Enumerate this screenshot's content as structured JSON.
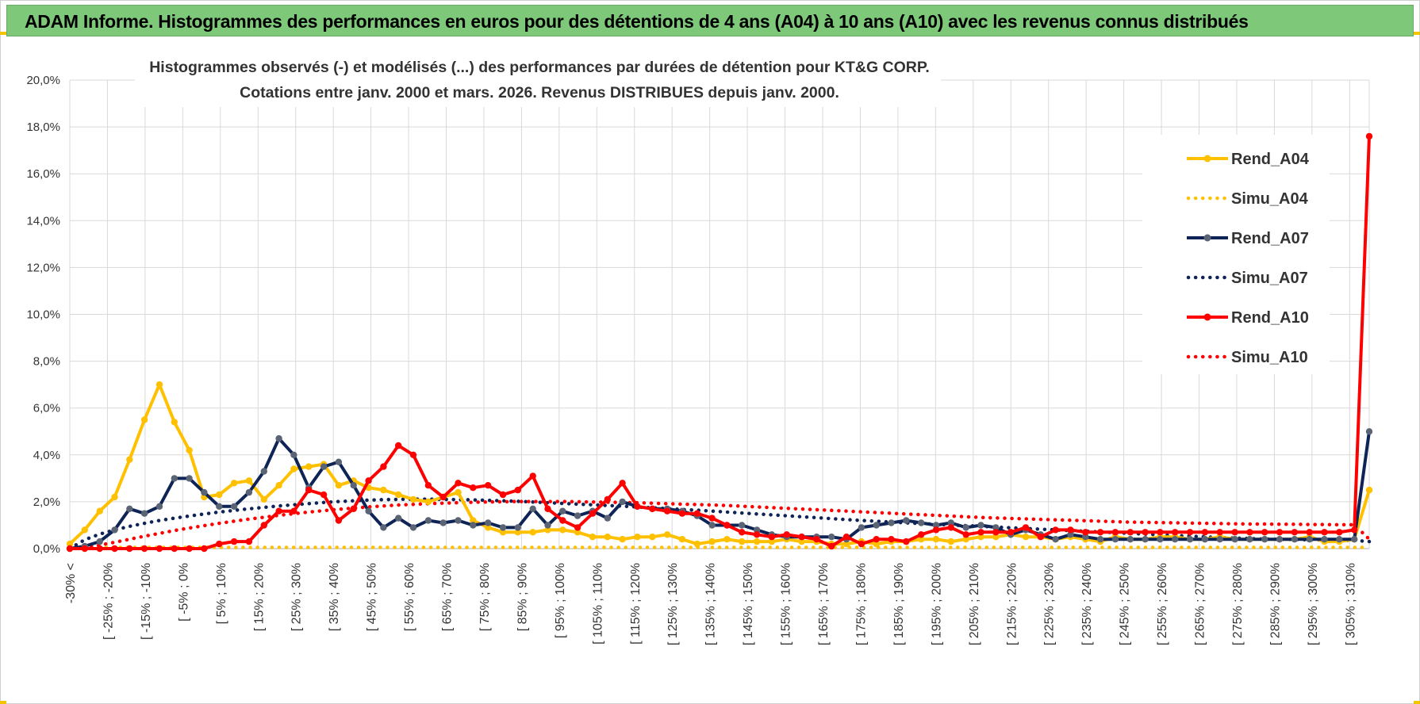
{
  "banner": {
    "title": "ADAM Informe. Histogrammes des performances en euros pour des détentions de 4 ans (A04) à 10 ans (A10) avec les revenus connus distribués"
  },
  "chart_data": {
    "type": "line",
    "title_lines": [
      "Histogrammes observés (-) et modélisés (...) des performances par durées de détention pour KT&G CORP.",
      "Cotations entre janv. 2000 et mars. 2026.  Revenus DISTRIBUES depuis janv. 2000."
    ],
    "ylim": [
      0,
      20
    ],
    "y_ticks": [
      "0,0%",
      "2,0%",
      "4,0%",
      "6,0%",
      "8,0%",
      "10,0%",
      "12,0%",
      "14,0%",
      "16,0%",
      "18,0%",
      "20,0%"
    ],
    "grid": true,
    "legend_position": "right",
    "x_tick_labels": [
      "-30% <",
      "[ -25% ; -20%",
      "[ -15% ; -10%",
      "[ -5% ; 0%",
      "[ 5% ; 10%",
      "[ 15% ; 20%",
      "[ 25% ; 30%",
      "[ 35% ; 40%",
      "[ 45% ; 50%",
      "[ 55% ; 60%",
      "[ 65% ; 70%",
      "[ 75% ; 80%",
      "[ 85% ; 90%",
      "[ 95% ; 100%",
      "[ 105% ; 110%",
      "[ 115% ; 120%",
      "[ 125% ; 130%",
      "[ 135% ; 140%",
      "[ 145% ; 150%",
      "[ 155% ; 160%",
      "[ 165% ; 170%",
      "[ 175% ; 180%",
      "[ 185% ; 190%",
      "[ 195% ; 200%",
      "[ 205% ; 210%",
      "[ 215% ; 220%",
      "[ 225% ; 230%",
      "[ 235% ; 240%",
      "[ 245% ; 250%",
      "[ 255% ; 260%",
      "[ 265% ; 270%",
      "[ 275% ; 280%",
      "[ 285% ; 290%",
      "[ 295% ; 300%",
      "[ 305% ; 310%"
    ],
    "series": [
      {
        "name": "Rend_A04",
        "color": "#ffc000",
        "style": "solid",
        "values": [
          0.2,
          0.8,
          1.6,
          2.2,
          3.8,
          5.5,
          7.0,
          5.4,
          4.2,
          2.2,
          2.3,
          2.8,
          2.9,
          2.1,
          2.7,
          3.4,
          3.5,
          3.6,
          2.7,
          2.9,
          2.6,
          2.5,
          2.3,
          2.1,
          2.0,
          2.2,
          2.4,
          1.2,
          0.9,
          0.7,
          0.7,
          0.7,
          0.8,
          0.8,
          0.7,
          0.5,
          0.5,
          0.4,
          0.5,
          0.5,
          0.6,
          0.4,
          0.2,
          0.3,
          0.4,
          0.3,
          0.3,
          0.3,
          0.4,
          0.3,
          0.3,
          0.2,
          0.2,
          0.3,
          0.2,
          0.3,
          0.3,
          0.4,
          0.4,
          0.3,
          0.4,
          0.5,
          0.5,
          0.6,
          0.5,
          0.5,
          0.4,
          0.5,
          0.4,
          0.3,
          0.5,
          0.4,
          0.4,
          0.5,
          0.5,
          0.4,
          0.4,
          0.5,
          0.4,
          0.4,
          0.4,
          0.4,
          0.4,
          0.5,
          0.3,
          0.3,
          0.4,
          2.5
        ]
      },
      {
        "name": "Simu_A04",
        "color": "#ffc000",
        "style": "dotted",
        "values": [
          0.05,
          0.05,
          0.05,
          0.05,
          0.05,
          0.05,
          0.05,
          0.05,
          0.05,
          0.05,
          0.05,
          0.05,
          0.05,
          0.05,
          0.05,
          0.05,
          0.05,
          0.05,
          0.05,
          0.05,
          0.05,
          0.05,
          0.05,
          0.05,
          0.05,
          0.05,
          0.05,
          0.05,
          0.05,
          0.05,
          0.05,
          0.05,
          0.05,
          0.05,
          0.05,
          0.05,
          0.05,
          0.05,
          0.05,
          0.05,
          0.05,
          0.05,
          0.05,
          0.05,
          0.05,
          0.05,
          0.05,
          0.05,
          0.05,
          0.05,
          0.05,
          0.05,
          0.05,
          0.05,
          0.05,
          0.05,
          0.05,
          0.05,
          0.05,
          0.05,
          0.05,
          0.05,
          0.05,
          0.05,
          0.05,
          0.05,
          0.05,
          0.05,
          0.05,
          0.05,
          0.05,
          0.05,
          0.05,
          0.05,
          0.05,
          0.05,
          0.05,
          0.05,
          0.05,
          0.05,
          0.05,
          0.05,
          0.05,
          0.05,
          0.05,
          0.05,
          0.05,
          0.05
        ]
      },
      {
        "name": "Rend_A07",
        "color": "#0f2456",
        "style": "solid",
        "values": [
          0.0,
          0.1,
          0.3,
          0.8,
          1.7,
          1.5,
          1.8,
          3.0,
          3.0,
          2.4,
          1.8,
          1.8,
          2.4,
          3.3,
          4.7,
          4.0,
          2.6,
          3.5,
          3.7,
          2.7,
          1.6,
          0.9,
          1.3,
          0.9,
          1.2,
          1.1,
          1.2,
          1.0,
          1.1,
          0.9,
          0.9,
          1.7,
          1.0,
          1.6,
          1.4,
          1.6,
          1.3,
          2.0,
          1.8,
          1.7,
          1.7,
          1.6,
          1.4,
          1.0,
          1.0,
          1.0,
          0.8,
          0.6,
          0.5,
          0.5,
          0.5,
          0.5,
          0.4,
          0.9,
          1.0,
          1.1,
          1.2,
          1.1,
          1.0,
          1.1,
          0.9,
          1.0,
          0.9,
          0.6,
          0.8,
          0.6,
          0.4,
          0.6,
          0.5,
          0.4,
          0.4,
          0.4,
          0.4,
          0.4,
          0.4,
          0.4,
          0.4,
          0.4,
          0.4,
          0.4,
          0.4,
          0.4,
          0.4,
          0.4,
          0.4,
          0.4,
          0.4,
          5.0
        ]
      },
      {
        "name": "Simu_A07",
        "color": "#0f2456",
        "style": "dotted",
        "values": [
          0.0,
          0.38,
          0.62,
          0.8,
          0.95,
          1.08,
          1.2,
          1.3,
          1.39,
          1.48,
          1.56,
          1.63,
          1.7,
          1.76,
          1.82,
          1.87,
          1.92,
          1.97,
          2.01,
          2.04,
          2.07,
          2.09,
          2.1,
          2.11,
          2.11,
          2.1,
          2.09,
          2.08,
          2.06,
          2.04,
          2.02,
          1.99,
          1.96,
          1.93,
          1.9,
          1.87,
          1.84,
          1.81,
          1.78,
          1.74,
          1.71,
          1.67,
          1.64,
          1.6,
          1.56,
          1.52,
          1.48,
          1.44,
          1.4,
          1.36,
          1.32,
          1.28,
          1.24,
          1.2,
          1.17,
          1.13,
          1.1,
          1.07,
          1.04,
          1.01,
          0.98,
          0.95,
          0.92,
          0.89,
          0.86,
          0.83,
          0.8,
          0.77,
          0.74,
          0.71,
          0.68,
          0.65,
          0.62,
          0.59,
          0.56,
          0.53,
          0.5,
          0.47,
          0.45,
          0.43,
          0.41,
          0.4,
          0.39,
          0.38,
          0.37,
          0.36,
          0.35,
          0.3
        ]
      },
      {
        "name": "Rend_A10",
        "color": "#ff0000",
        "style": "solid",
        "values": [
          0.0,
          0.0,
          0.0,
          0.0,
          0.0,
          0.0,
          0.0,
          0.0,
          0.0,
          0.0,
          0.2,
          0.3,
          0.3,
          1.0,
          1.6,
          1.6,
          2.5,
          2.3,
          1.2,
          1.7,
          2.9,
          3.5,
          4.4,
          4.0,
          2.7,
          2.2,
          2.8,
          2.6,
          2.7,
          2.3,
          2.5,
          3.1,
          1.7,
          1.2,
          0.9,
          1.5,
          2.1,
          2.8,
          1.8,
          1.7,
          1.6,
          1.5,
          1.5,
          1.3,
          1.0,
          0.7,
          0.6,
          0.5,
          0.6,
          0.5,
          0.4,
          0.1,
          0.5,
          0.2,
          0.4,
          0.4,
          0.3,
          0.6,
          0.8,
          0.9,
          0.6,
          0.7,
          0.7,
          0.7,
          0.9,
          0.5,
          0.8,
          0.8,
          0.7,
          0.7,
          0.7,
          0.7,
          0.7,
          0.7,
          0.7,
          0.7,
          0.7,
          0.7,
          0.7,
          0.7,
          0.7,
          0.7,
          0.7,
          0.7,
          0.7,
          0.7,
          0.8,
          17.6
        ]
      },
      {
        "name": "Simu_A10",
        "color": "#ff0000",
        "style": "dotted",
        "values": [
          0.0,
          0.05,
          0.15,
          0.27,
          0.4,
          0.53,
          0.65,
          0.77,
          0.88,
          0.98,
          1.08,
          1.17,
          1.26,
          1.34,
          1.42,
          1.49,
          1.56,
          1.62,
          1.68,
          1.73,
          1.78,
          1.82,
          1.86,
          1.89,
          1.92,
          1.94,
          1.96,
          1.98,
          1.99,
          2.0,
          2.01,
          2.01,
          2.01,
          2.01,
          2.0,
          1.99,
          1.98,
          1.97,
          1.96,
          1.94,
          1.92,
          1.9,
          1.88,
          1.86,
          1.84,
          1.81,
          1.78,
          1.75,
          1.72,
          1.69,
          1.66,
          1.63,
          1.6,
          1.57,
          1.54,
          1.51,
          1.48,
          1.45,
          1.42,
          1.39,
          1.36,
          1.33,
          1.31,
          1.29,
          1.27,
          1.25,
          1.23,
          1.21,
          1.19,
          1.17,
          1.15,
          1.13,
          1.12,
          1.11,
          1.1,
          1.09,
          1.08,
          1.07,
          1.06,
          1.05,
          1.05,
          1.04,
          1.04,
          1.03,
          1.03,
          1.02,
          1.02,
          0.4
        ]
      }
    ]
  }
}
